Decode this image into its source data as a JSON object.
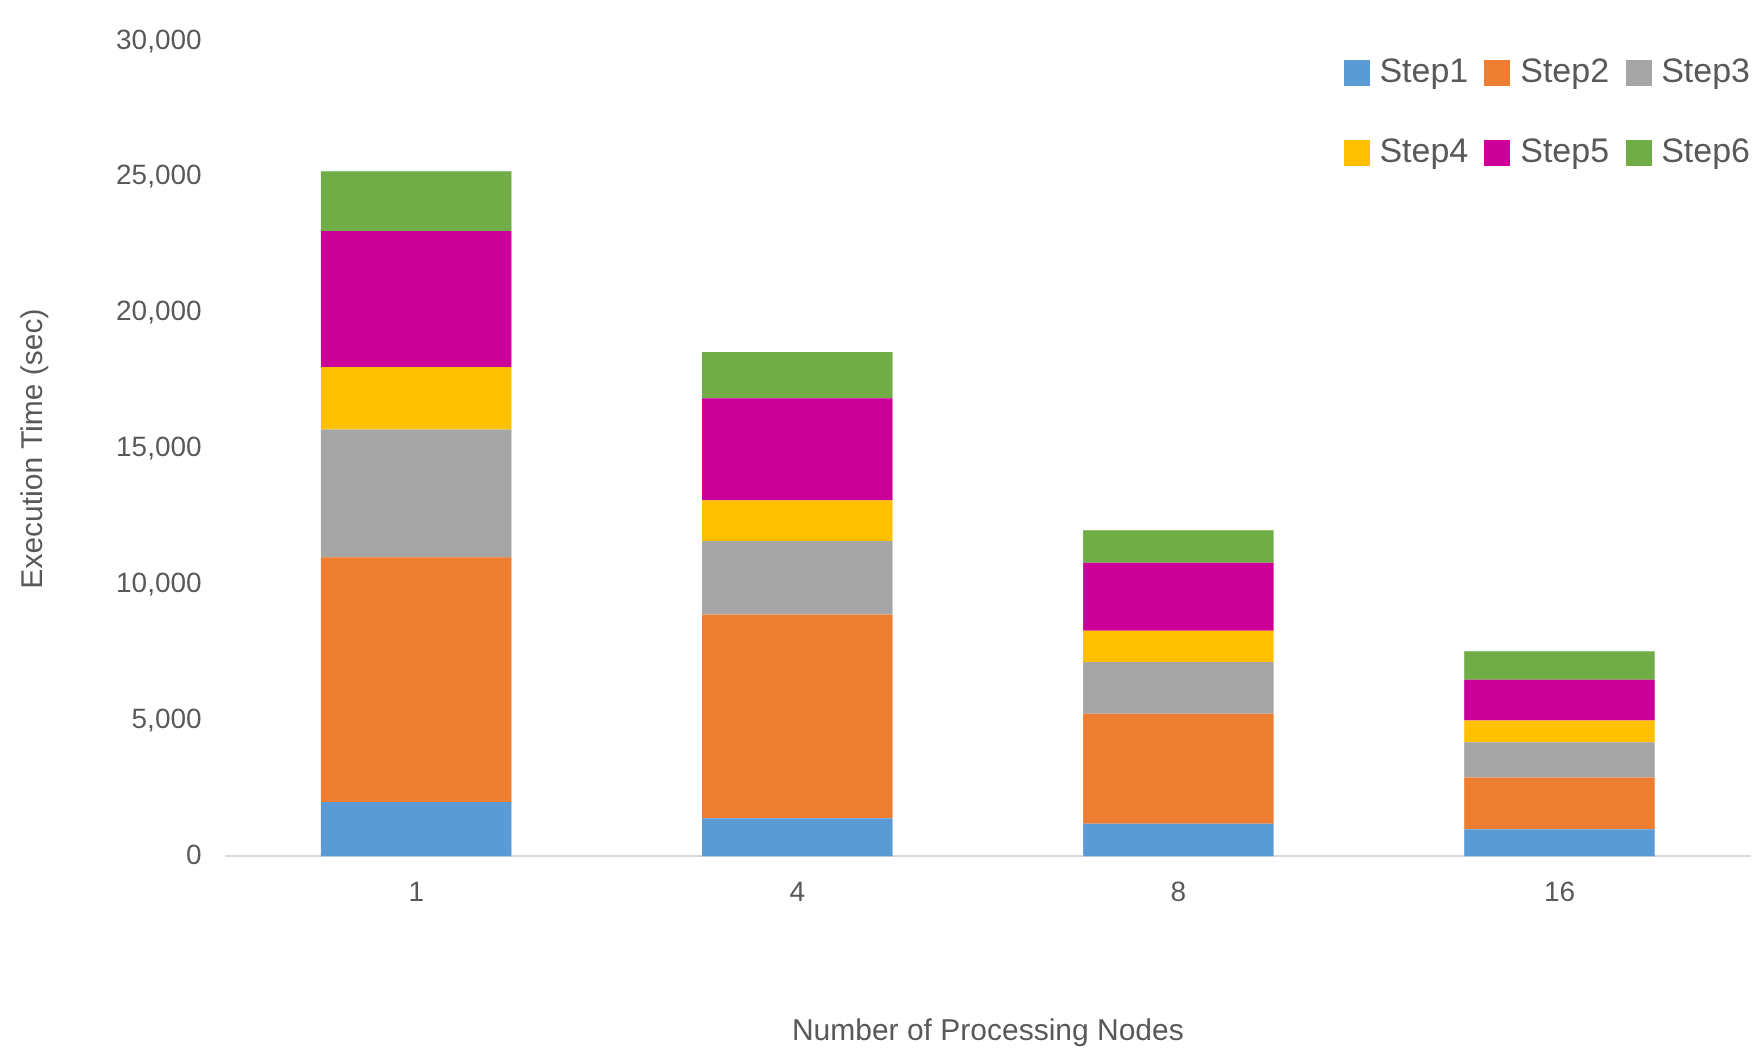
{
  "chart_data": {
    "type": "bar",
    "stacked": true,
    "categories": [
      "1",
      "4",
      "8",
      "16"
    ],
    "xlabel": "Number of Processing Nodes",
    "ylabel": "Execution Time (sec)",
    "ylim": [
      0,
      30000
    ],
    "yticks": [
      {
        "value": 0,
        "label": "0"
      },
      {
        "value": 5000,
        "label": "5,000"
      },
      {
        "value": 10000,
        "label": "10,000"
      },
      {
        "value": 15000,
        "label": "15,000"
      },
      {
        "value": 20000,
        "label": "20,000"
      },
      {
        "value": 25000,
        "label": "25,000"
      },
      {
        "value": 30000,
        "label": "30,000"
      }
    ],
    "grid": false,
    "legend": "top right",
    "series": [
      {
        "name": "Step1",
        "color": "#5b9bd5",
        "values": [
          2000,
          1400,
          1200,
          1000
        ]
      },
      {
        "name": "Step2",
        "color": "#ed7d31",
        "values": [
          9000,
          7500,
          4050,
          1900
        ]
      },
      {
        "name": "Step3",
        "color": "#a5a5a5",
        "values": [
          4700,
          2700,
          1900,
          1300
        ]
      },
      {
        "name": "Step4",
        "color": "#ffc000",
        "values": [
          2300,
          1500,
          1150,
          800
        ]
      },
      {
        "name": "Step5",
        "color": "#cc0099",
        "values": [
          5000,
          3750,
          2500,
          1500
        ]
      },
      {
        "name": "Step6",
        "color": "#70ad47",
        "values": [
          2200,
          1700,
          1200,
          1050
        ]
      }
    ]
  }
}
